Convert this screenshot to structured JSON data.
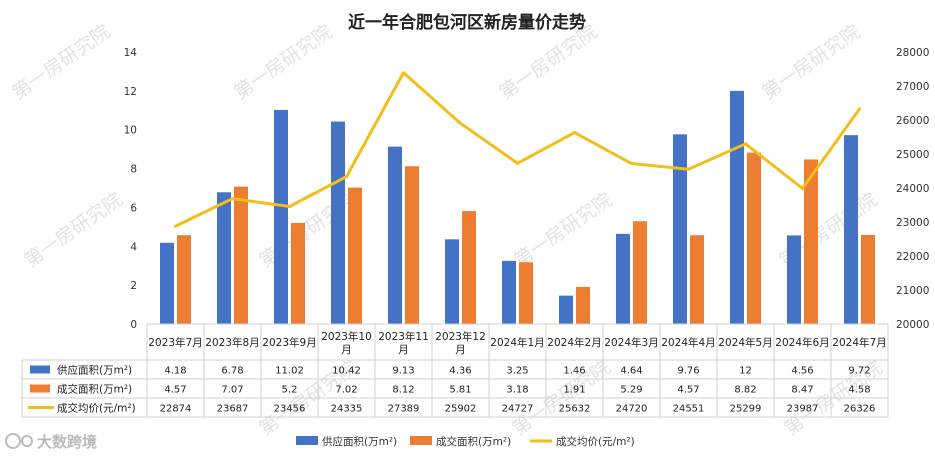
{
  "chart_data": {
    "type": "bar",
    "title": "近一年合肥包河区新房量价走势",
    "categories": [
      "2023年7月",
      "2023年8月",
      "2023年9月",
      "2023年10月",
      "2023年11月",
      "2023年12月",
      "2024年1月",
      "2024年2月",
      "2024年3月",
      "2024年4月",
      "2024年5月",
      "2024年6月",
      "2024年7月"
    ],
    "series": [
      {
        "name": "供应面积(万m²)",
        "type": "bar",
        "axis": "left",
        "color": "#4472C4",
        "values": [
          4.18,
          6.78,
          11.02,
          10.42,
          9.13,
          4.36,
          3.25,
          1.46,
          4.64,
          9.76,
          12,
          4.56,
          9.72
        ],
        "labels": [
          "4.18",
          "6.78",
          "11.02",
          "10.42",
          "9.13",
          "4.36",
          "3.25",
          "1.46",
          "4.64",
          "9.76",
          "12",
          "4.56",
          "9.72"
        ]
      },
      {
        "name": "成交面积(万m²)",
        "type": "bar",
        "axis": "left",
        "color": "#ED7D31",
        "values": [
          4.57,
          7.07,
          5.2,
          7.02,
          8.12,
          5.81,
          3.18,
          1.91,
          5.29,
          4.57,
          8.82,
          8.47,
          4.58
        ],
        "labels": [
          "4.57",
          "7.07",
          "5.2",
          "7.02",
          "8.12",
          "5.81",
          "3.18",
          "1.91",
          "5.29",
          "4.57",
          "8.82",
          "8.47",
          "4.58"
        ]
      },
      {
        "name": "成交均价(元/m²)",
        "type": "line",
        "axis": "right",
        "color": "#F2BE1A",
        "values": [
          22874,
          23687,
          23456,
          24335,
          27389,
          25902,
          24727,
          25632,
          24720,
          24551,
          25299,
          23987,
          26326
        ],
        "labels": [
          "22874",
          "23687",
          "23456",
          "24335",
          "27389",
          "25902",
          "24727",
          "25632",
          "24720",
          "24551",
          "25299",
          "23987",
          "26326"
        ]
      }
    ],
    "y_left": {
      "min": 0,
      "max": 14,
      "step": 2,
      "ticks": [
        "0",
        "2",
        "4",
        "6",
        "8",
        "10",
        "12",
        "14"
      ]
    },
    "y_right": {
      "min": 20000,
      "max": 28000,
      "step": 1000,
      "ticks": [
        "20000",
        "21000",
        "22000",
        "23000",
        "24000",
        "25000",
        "26000",
        "27000",
        "28000"
      ]
    },
    "grid": false,
    "legend_position": "bottom",
    "data_table": true
  },
  "watermark": "第一房研究院",
  "logo": "大数跨境"
}
